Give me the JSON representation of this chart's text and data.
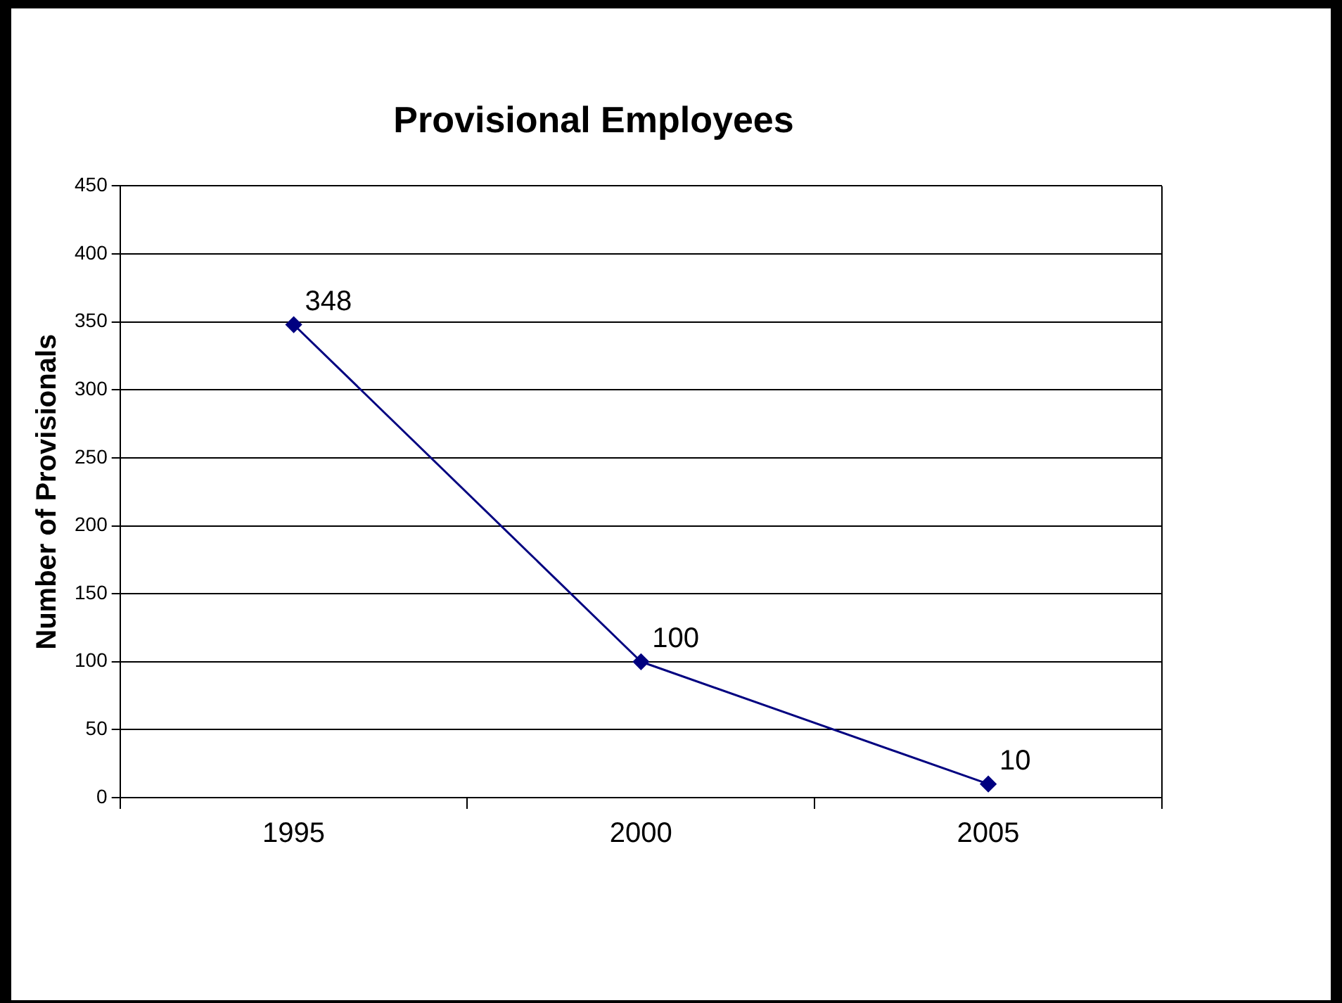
{
  "chart_data": {
    "type": "line",
    "title": "Provisional Employees",
    "ylabel": "Number of Provisionals",
    "categories": [
      "1995",
      "2000",
      "2005"
    ],
    "series": [
      {
        "color": "#000080",
        "values": [
          348,
          100,
          10
        ]
      }
    ],
    "ylim": [
      0,
      450
    ],
    "yticks": [
      0,
      50,
      100,
      150,
      200,
      250,
      300,
      350,
      400,
      450
    ],
    "grid": "y",
    "legend": false,
    "marker": "diamond",
    "line_style": "solid",
    "data_labels": true
  }
}
